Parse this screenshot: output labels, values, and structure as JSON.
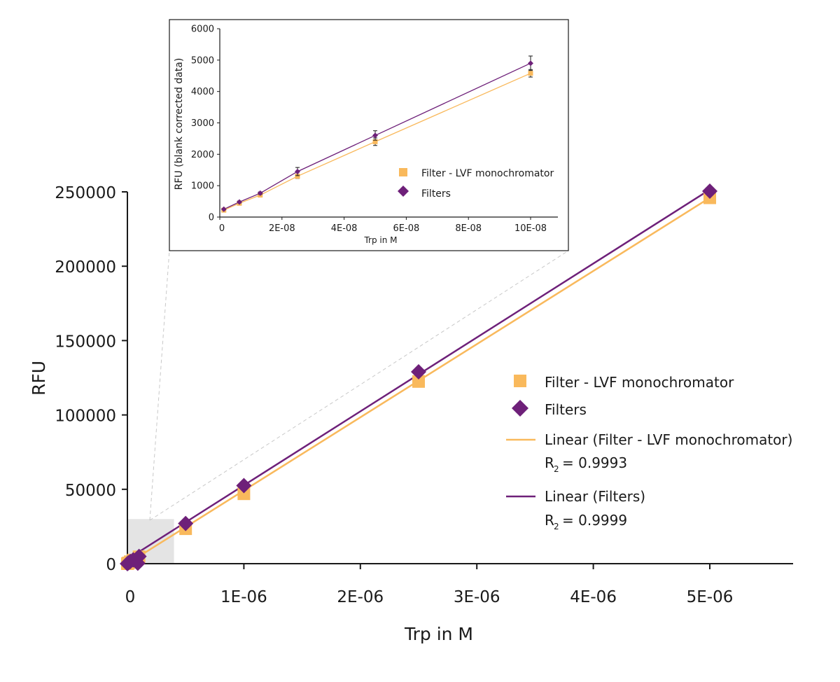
{
  "chart_data": [
    {
      "id": "main",
      "type": "scatter",
      "xlabel": "Trp in M",
      "ylabel": "RFU",
      "xlim": [
        0,
        5.7e-06
      ],
      "ylim": [
        0,
        250000
      ],
      "x_ticks": [
        0,
        1e-06,
        2e-06,
        3e-06,
        4e-06,
        5e-06
      ],
      "x_tick_labels": [
        "0",
        "1E-06",
        "2E-06",
        "3E-06",
        "4E-06",
        "5E-06"
      ],
      "y_ticks": [
        0,
        50000,
        100000,
        150000,
        200000,
        250000
      ],
      "y_tick_labels": [
        "0",
        "50000",
        "100000",
        "150000",
        "200000",
        "250000"
      ],
      "grid": false,
      "legend_position": "right",
      "zoom_region": {
        "x": [
          0,
          4e-07
        ],
        "y": [
          0,
          30000
        ]
      },
      "series": [
        {
          "name": "Filter - LVF monochromator",
          "marker": "square",
          "color": "#f9b95c",
          "x": [
            0,
            5e-09,
            1e-08,
            2.5e-08,
            5e-08,
            1e-07,
            5e-07,
            1e-06,
            2.5e-06,
            5e-06
          ],
          "y": [
            0,
            250,
            500,
            1300,
            2400,
            4600,
            23500,
            47000,
            122500,
            246000
          ]
        },
        {
          "name": "Filters",
          "marker": "diamond",
          "color": "#6e2079",
          "x": [
            0,
            5e-09,
            1e-08,
            2.5e-08,
            5e-08,
            1e-07,
            5e-07,
            1e-06,
            2.5e-06,
            5e-06
          ],
          "y": [
            0,
            280,
            560,
            1450,
            2600,
            4900,
            27000,
            52500,
            129000,
            250500
          ]
        }
      ],
      "trendlines": [
        {
          "name": "Linear (Filter - LVF monochromator)",
          "color": "#f9b95c",
          "x": [
            0,
            5e-06
          ],
          "y": [
            0,
            246000
          ],
          "r2_label": "R",
          "r2_sub": "2",
          "r2_value": "= 0.9993"
        },
        {
          "name": "Linear (Filters)",
          "color": "#6e2079",
          "x": [
            0,
            5e-06
          ],
          "y": [
            3000,
            251500
          ],
          "r2_label": "R",
          "r2_sub": "2",
          "r2_value": "= 0.9999"
        }
      ]
    },
    {
      "id": "inset",
      "type": "line",
      "xlabel": "Trp in M",
      "ylabel": "RFU (blank corrected data)",
      "xlim": [
        0,
        1.08e-07
      ],
      "ylim": [
        0,
        6000
      ],
      "x_ticks": [
        0,
        2e-08,
        4e-08,
        6e-08,
        8e-08,
        1e-07
      ],
      "x_tick_labels": [
        "0",
        "2E-08",
        "4E-08",
        "6E-08",
        "8E-08",
        "10E-08"
      ],
      "y_ticks": [
        0,
        1000,
        2000,
        3000,
        4000,
        5000,
        6000
      ],
      "y_tick_labels": [
        "0",
        "1000",
        "2000",
        "3000",
        "4000",
        "5000",
        "6000"
      ],
      "grid": false,
      "legend_position": "bottom-right",
      "series": [
        {
          "name": "Filter - LVF monochromator",
          "marker": "square",
          "color": "#f9b95c",
          "x": [
            1.3e-09,
            6.3e-09,
            1.3e-08,
            2.5e-08,
            5e-08,
            1e-07
          ],
          "y": [
            220,
            440,
            700,
            1300,
            2400,
            4580
          ],
          "error": [
            20,
            30,
            40,
            70,
            120,
            120
          ]
        },
        {
          "name": "Filters",
          "marker": "diamond",
          "color": "#6e2079",
          "x": [
            1.3e-09,
            6.3e-09,
            1.3e-08,
            2.5e-08,
            5e-08,
            1e-07
          ],
          "y": [
            250,
            480,
            760,
            1450,
            2600,
            4900
          ],
          "error": [
            20,
            30,
            40,
            130,
            150,
            230
          ]
        }
      ]
    }
  ]
}
